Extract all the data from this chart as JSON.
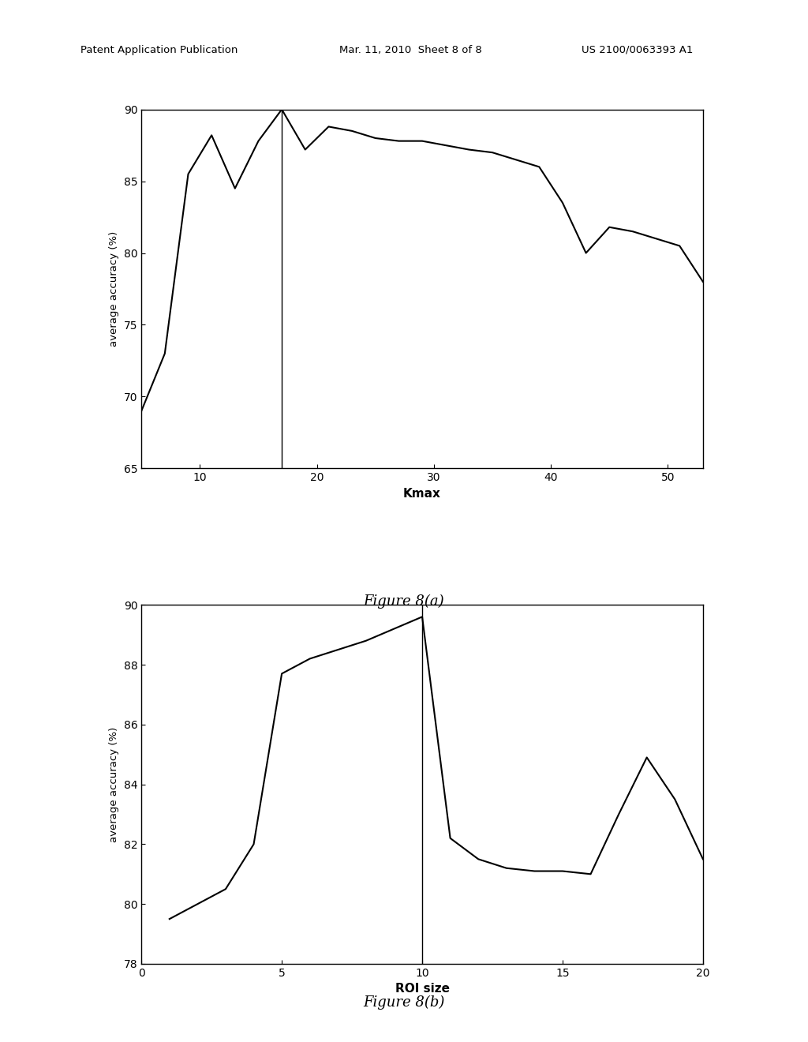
{
  "fig8a": {
    "x": [
      5,
      7,
      9,
      11,
      13,
      15,
      17,
      19,
      21,
      23,
      25,
      27,
      29,
      31,
      33,
      35,
      37,
      39,
      41,
      43,
      45,
      47,
      49,
      51,
      53
    ],
    "y": [
      69.0,
      73.0,
      85.5,
      88.2,
      84.5,
      87.8,
      90.0,
      87.2,
      88.8,
      88.5,
      88.0,
      87.8,
      87.8,
      87.5,
      87.2,
      87.0,
      86.5,
      86.0,
      83.5,
      80.0,
      81.8,
      81.5,
      81.0,
      80.5,
      78.0
    ],
    "vline_x": 17,
    "xlabel": "Kmax",
    "ylabel": "average accuracy (%)",
    "xlim": [
      5,
      53
    ],
    "ylim": [
      65,
      90
    ],
    "xticks": [
      10,
      20,
      30,
      40,
      50
    ],
    "yticks": [
      65,
      70,
      75,
      80,
      85,
      90
    ],
    "caption": "Figure 8(a)"
  },
  "fig8b": {
    "x": [
      1,
      2,
      3,
      4,
      5,
      6,
      7,
      8,
      9,
      10,
      11,
      12,
      13,
      14,
      15,
      16,
      17,
      18,
      19,
      20
    ],
    "y": [
      79.5,
      80.0,
      80.5,
      82.0,
      87.7,
      88.2,
      88.5,
      88.8,
      89.2,
      89.6,
      82.2,
      81.5,
      81.2,
      81.1,
      81.1,
      81.0,
      83.0,
      84.9,
      83.5,
      81.5
    ],
    "vline_x": 10,
    "xlabel": "ROI size",
    "ylabel": "average accuracy (%)",
    "xlim": [
      0,
      20
    ],
    "ylim": [
      78,
      90
    ],
    "xticks": [
      0,
      5,
      10,
      15,
      20
    ],
    "yticks": [
      78,
      80,
      82,
      84,
      86,
      88,
      90
    ],
    "caption": "Figure 8(b)"
  },
  "header_left": "Patent Application Publication",
  "header_mid": "Mar. 11, 2010  Sheet 8 of 8",
  "header_right": "US 2100/0063393 A1",
  "bg_color": "#ffffff",
  "line_color": "#000000",
  "font_color": "#000000"
}
